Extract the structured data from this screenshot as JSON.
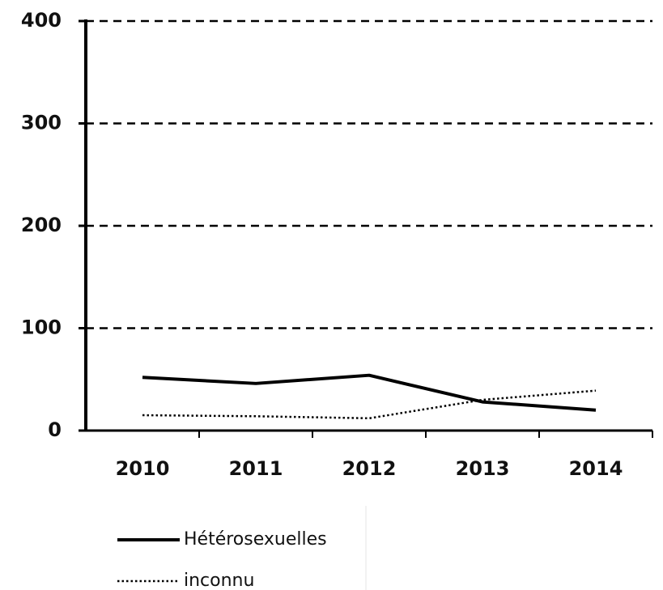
{
  "chart_data": {
    "type": "line",
    "categories": [
      "2010",
      "2011",
      "2012",
      "2013",
      "2014"
    ],
    "series": [
      {
        "name": "Hétérosexuelles",
        "color": "#000000",
        "style": "solid",
        "values": [
          52,
          46,
          54,
          28,
          20
        ]
      },
      {
        "name": "inconnu",
        "color": "#000000",
        "style": "dotted",
        "values": [
          15,
          14,
          12,
          30,
          39
        ]
      }
    ],
    "ylim": [
      0,
      400
    ],
    "yticks": [
      0,
      100,
      200,
      300,
      400
    ],
    "grid": true
  }
}
